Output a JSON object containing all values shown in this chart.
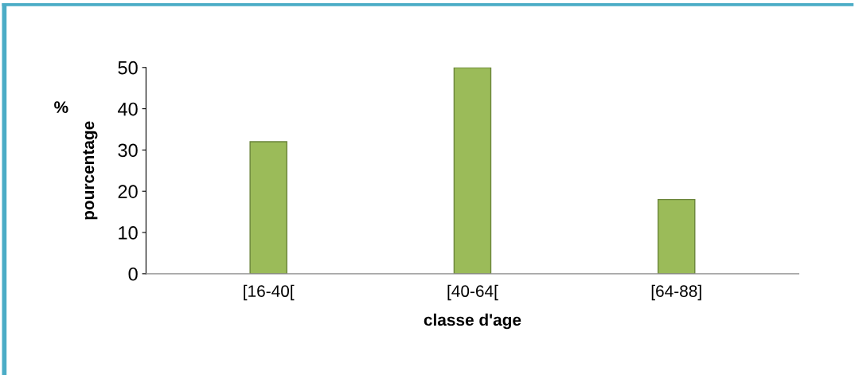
{
  "chart_data": {
    "type": "bar",
    "xlabel": "classe d'age",
    "ylabel": "pourcentage",
    "annotations": [
      "%"
    ],
    "categories": [
      "[16-40[",
      "[40-64[",
      "[64-88]"
    ],
    "values": [
      32,
      50,
      18
    ],
    "color": "#9bbb59",
    "ylim": [
      0,
      50
    ],
    "yticks": [
      0,
      10,
      20,
      30,
      40,
      50
    ],
    "grid": false
  }
}
